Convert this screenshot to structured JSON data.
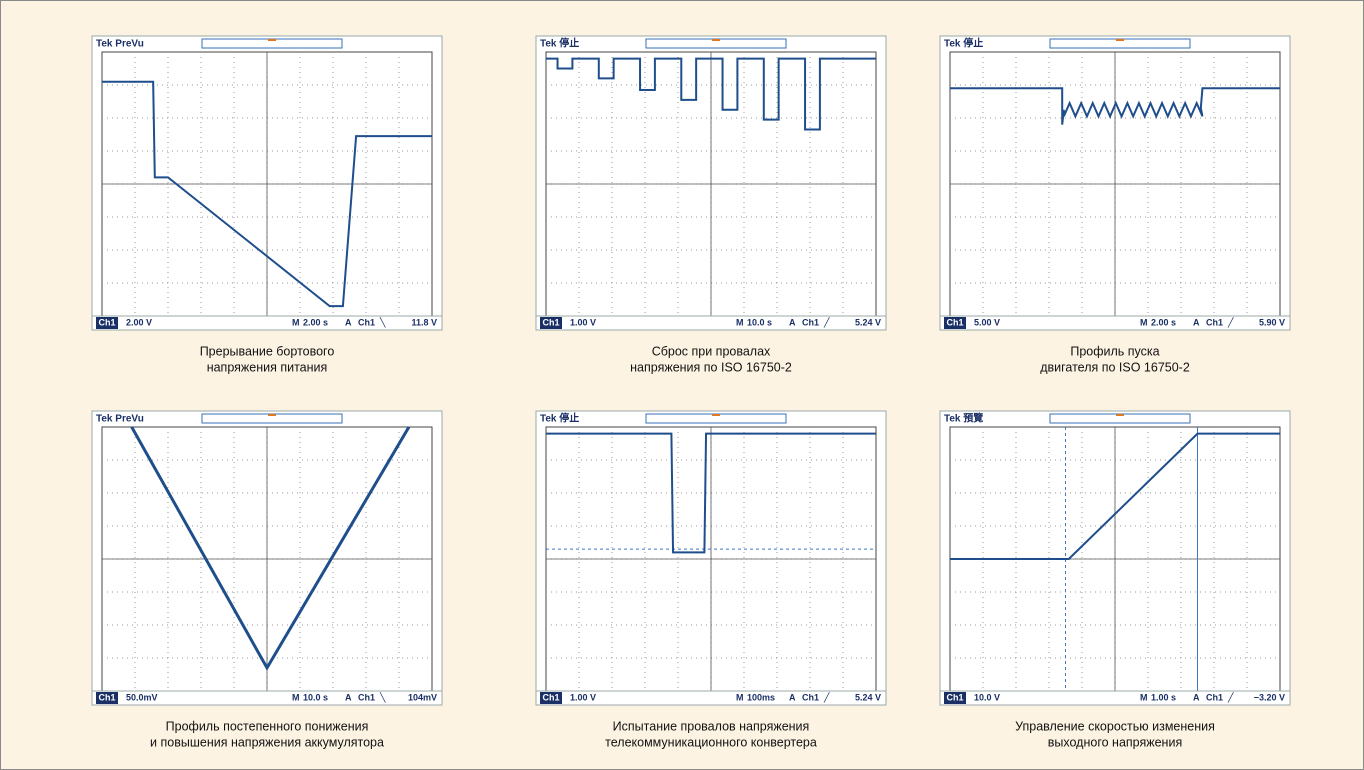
{
  "panels": [
    {
      "header": "Tek PreVu",
      "channel": "Ch1",
      "volts": "2.00 V",
      "time_mode": "M",
      "time": "2.00 s",
      "trigger": "A",
      "trigger_source": "Ch1",
      "slope": "╲",
      "level": "11.8 V",
      "caption": [
        "Прерывание бортового",
        "напряжения питания"
      ]
    },
    {
      "header": "Tek 停止",
      "channel": "Ch1",
      "volts": "1.00 V",
      "time_mode": "M",
      "time": "10.0 s",
      "trigger": "A",
      "trigger_source": "Ch1",
      "slope": "╱",
      "level": "5.24 V",
      "caption": [
        "Сброс при провалах",
        "напряжения по ISO 16750-2"
      ]
    },
    {
      "header": "Tek 停止",
      "channel": "Ch1",
      "volts": "5.00 V",
      "time_mode": "M",
      "time": "2.00 s",
      "trigger": "A",
      "trigger_source": "Ch1",
      "slope": "╱",
      "level": "5.90 V",
      "caption": [
        "Профиль пуска",
        "двигателя по ISO 16750-2"
      ]
    },
    {
      "header": "Tek PreVu",
      "channel": "Ch1",
      "volts": "50.0mV",
      "time_mode": "M",
      "time": "10.0 s",
      "trigger": "A",
      "trigger_source": "Ch1",
      "slope": "╲",
      "level": "104mV",
      "caption": [
        "Профиль постепенного понижения",
        "и повышения напряжения аккумулятора"
      ]
    },
    {
      "header": "Tek 停止",
      "channel": "Ch1",
      "volts": "1.00 V",
      "time_mode": "M",
      "time": "100ms",
      "trigger": "A",
      "trigger_source": "Ch1",
      "slope": "╱",
      "level": "5.24 V",
      "caption": [
        "Испытание провалов напряжения",
        "телекоммуникационного конвертера"
      ]
    },
    {
      "header": "Tek 預覽",
      "channel": "Ch1",
      "volts": "10.0 V",
      "time_mode": "M",
      "time": "1.00 s",
      "trigger": "A",
      "trigger_source": "Ch1",
      "slope": "╱",
      "level": "−3.20 V",
      "caption": [
        "Управление скоростью изменения",
        "выходного напряжения"
      ]
    }
  ]
}
